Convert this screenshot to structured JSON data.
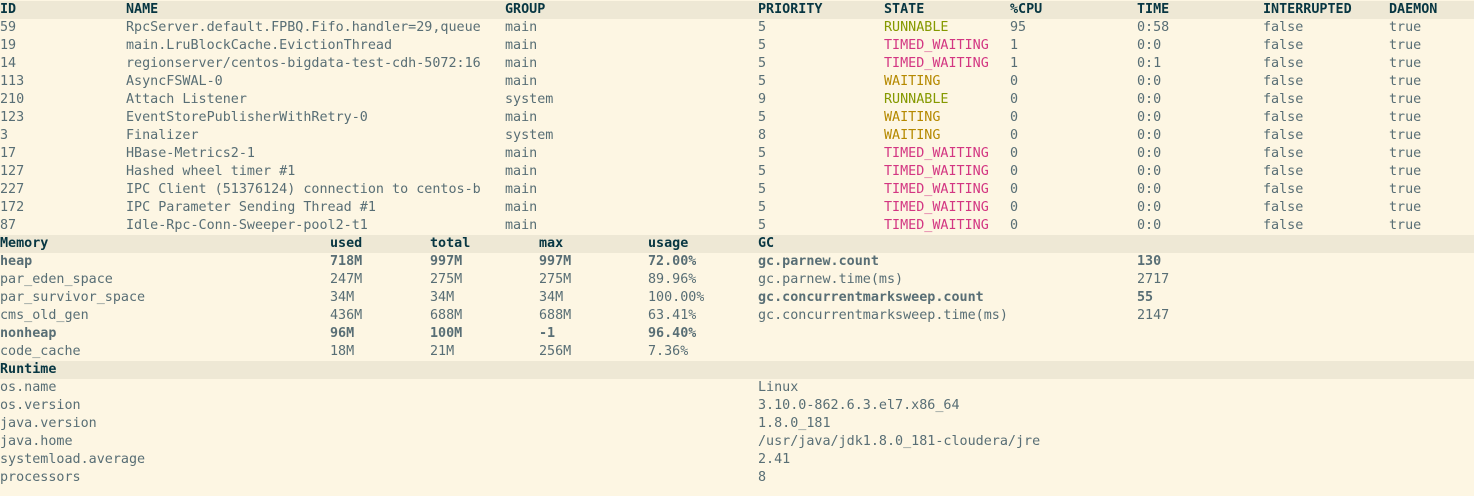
{
  "colors": {
    "background": "#fdf6e3",
    "header_background": "#eee8d5",
    "text": "#586e75",
    "header_text": "#073642",
    "RUNNABLE": "#859900",
    "TIMED_WAITING": "#d33682",
    "WAITING": "#b58900"
  },
  "threads": {
    "columns": [
      "ID",
      "NAME",
      "GROUP",
      "PRIORITY",
      "STATE",
      "%CPU",
      "TIME",
      "INTERRUPTED",
      "DAEMON"
    ],
    "rows": [
      [
        "59",
        "RpcServer.default.FPBQ.Fifo.handler=29,queue",
        "main",
        "5",
        "RUNNABLE",
        "95",
        "0:58",
        "false",
        "true"
      ],
      [
        "19",
        "main.LruBlockCache.EvictionThread",
        "main",
        "5",
        "TIMED_WAITING",
        "1",
        "0:0",
        "false",
        "true"
      ],
      [
        "14",
        "regionserver/centos-bigdata-test-cdh-5072:16",
        "main",
        "5",
        "TIMED_WAITING",
        "1",
        "0:1",
        "false",
        "true"
      ],
      [
        "113",
        "AsyncFSWAL-0",
        "main",
        "5",
        "WAITING",
        "0",
        "0:0",
        "false",
        "true"
      ],
      [
        "210",
        "Attach Listener",
        "system",
        "9",
        "RUNNABLE",
        "0",
        "0:0",
        "false",
        "true"
      ],
      [
        "123",
        "EventStorePublisherWithRetry-0",
        "main",
        "5",
        "WAITING",
        "0",
        "0:0",
        "false",
        "true"
      ],
      [
        "3",
        "Finalizer",
        "system",
        "8",
        "WAITING",
        "0",
        "0:0",
        "false",
        "true"
      ],
      [
        "17",
        "HBase-Metrics2-1",
        "main",
        "5",
        "TIMED_WAITING",
        "0",
        "0:0",
        "false",
        "true"
      ],
      [
        "127",
        "Hashed wheel timer #1",
        "main",
        "5",
        "TIMED_WAITING",
        "0",
        "0:0",
        "false",
        "true"
      ],
      [
        "227",
        "IPC Client (51376124) connection to centos-b",
        "main",
        "5",
        "TIMED_WAITING",
        "0",
        "0:0",
        "false",
        "true"
      ],
      [
        "172",
        "IPC Parameter Sending Thread #1",
        "main",
        "5",
        "TIMED_WAITING",
        "0",
        "0:0",
        "false",
        "true"
      ],
      [
        "87",
        "Idle-Rpc-Conn-Sweeper-pool2-t1",
        "main",
        "5",
        "TIMED_WAITING",
        "0",
        "0:0",
        "false",
        "true"
      ]
    ]
  },
  "memory": {
    "columns": [
      "Memory",
      "used",
      "total",
      "max",
      "usage",
      "GC",
      ""
    ],
    "rows": [
      {
        "cells": [
          "heap",
          "718M",
          "997M",
          "997M",
          "72.00%",
          "gc.parnew.count",
          "130"
        ],
        "bold": true
      },
      {
        "cells": [
          "par_eden_space",
          "247M",
          "275M",
          "275M",
          "89.96%",
          "gc.parnew.time(ms)",
          "2717"
        ],
        "bold": false
      },
      {
        "cells": [
          "par_survivor_space",
          "34M",
          "34M",
          "34M",
          "100.00%",
          "gc.concurrentmarksweep.count",
          "55"
        ],
        "bold": false,
        "gc_bold": true
      },
      {
        "cells": [
          "cms_old_gen",
          "436M",
          "688M",
          "688M",
          "63.41%",
          "gc.concurrentmarksweep.time(ms)",
          "2147"
        ],
        "bold": false
      },
      {
        "cells": [
          "nonheap",
          "96M",
          "100M",
          "-1",
          "96.40%",
          "",
          ""
        ],
        "bold": true
      },
      {
        "cells": [
          "code_cache",
          "18M",
          "21M",
          "256M",
          "7.36%",
          "",
          ""
        ],
        "bold": false
      }
    ]
  },
  "runtime": {
    "title": "Runtime",
    "rows": [
      [
        "os.name",
        "Linux"
      ],
      [
        "os.version",
        "3.10.0-862.6.3.el7.x86_64"
      ],
      [
        "java.version",
        "1.8.0_181"
      ],
      [
        "java.home",
        "/usr/java/jdk1.8.0_181-cloudera/jre"
      ],
      [
        "systemload.average",
        "2.41"
      ],
      [
        "processors",
        "8"
      ]
    ]
  }
}
